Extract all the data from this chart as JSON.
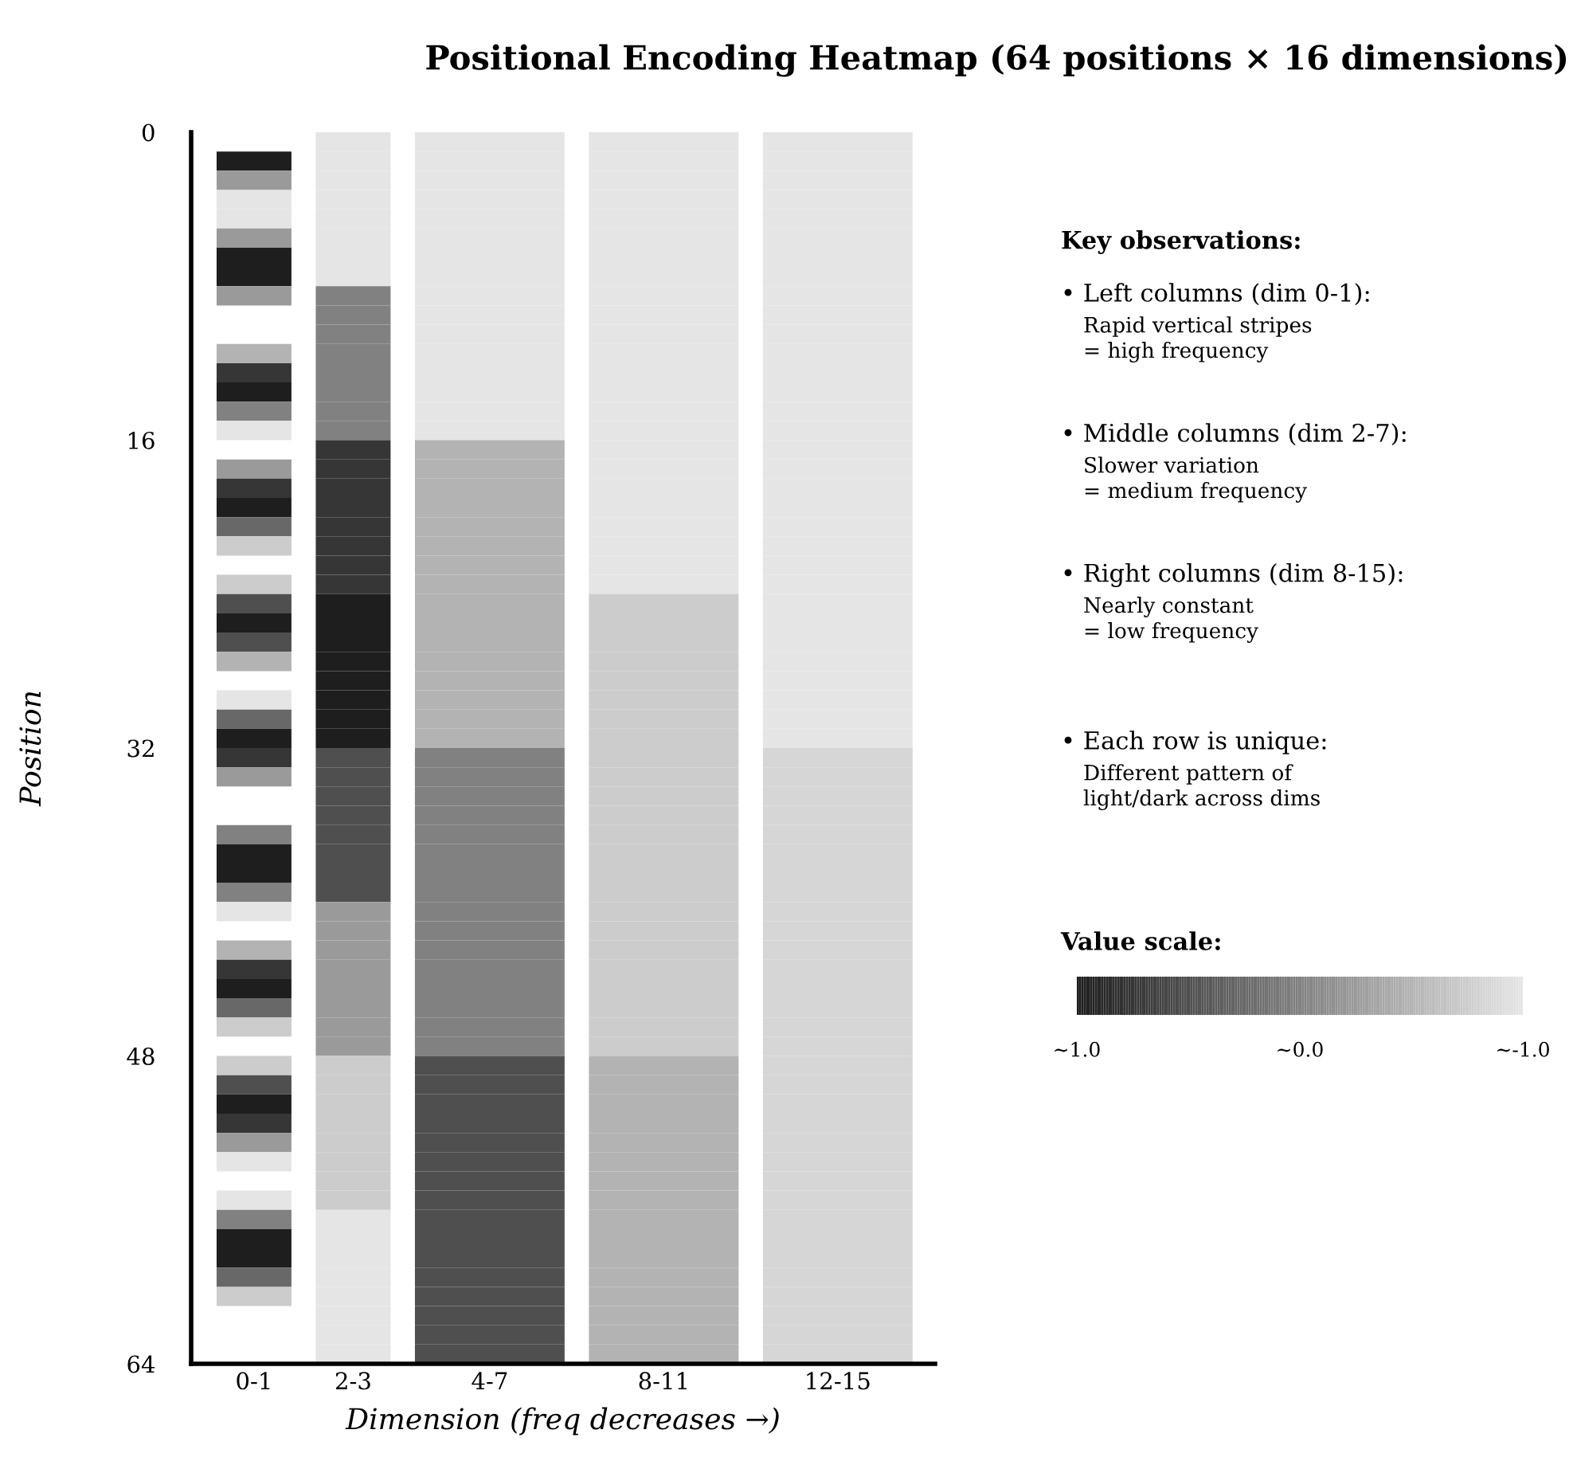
{
  "chart_data": {
    "type": "heatmap",
    "title": "Positional Encoding Heatmap (64 positions × 16 dimensions)",
    "xlabel": "Dimension (freq decreases →)",
    "ylabel": "Position",
    "clabel": "Value scale:",
    "categories": [
      "0-1",
      "2-3",
      "4-7",
      "8-11",
      "12-15"
    ],
    "ylim": [
      64,
      0
    ],
    "yticks": [
      0,
      16,
      32,
      48,
      64
    ],
    "clim": [
      -1,
      1
    ],
    "cticks": [
      {
        "value": 1,
        "label": "~1.0"
      },
      {
        "value": 0,
        "label": "~0.0"
      },
      {
        "value": -1,
        "label": "~-1.0"
      }
    ],
    "cells": [
      [
        null,
        -1,
        -1,
        -1,
        -1
      ],
      [
        1,
        -1,
        -1,
        -1,
        -1
      ],
      [
        -0.25,
        -1,
        -1,
        -1,
        -1
      ],
      [
        -1,
        -1,
        -1,
        -1,
        -1
      ],
      [
        -1,
        -1,
        -1,
        -1,
        -1
      ],
      [
        -0.25,
        -1,
        -1,
        -1,
        -1
      ],
      [
        1,
        -1,
        -1,
        -1,
        -1
      ],
      [
        1,
        -1,
        -1,
        -1,
        -1
      ],
      [
        -0.25,
        0,
        -1,
        -1,
        -1
      ],
      [
        null,
        0,
        -1,
        -1,
        -1
      ],
      [
        null,
        0,
        -1,
        -1,
        -1
      ],
      [
        -0.5,
        0,
        -1,
        -1,
        -1
      ],
      [
        0.75,
        0,
        -1,
        -1,
        -1
      ],
      [
        1,
        0,
        -1,
        -1,
        -1
      ],
      [
        0,
        0,
        -1,
        -1,
        -1
      ],
      [
        -1,
        0,
        -1,
        -1,
        -1
      ],
      [
        null,
        0.75,
        -0.5,
        -1,
        -1
      ],
      [
        -0.25,
        0.75,
        -0.5,
        -1,
        -1
      ],
      [
        0.75,
        0.75,
        -0.5,
        -1,
        -1
      ],
      [
        1,
        0.75,
        -0.5,
        -1,
        -1
      ],
      [
        0.25,
        0.75,
        -0.5,
        -1,
        -1
      ],
      [
        -0.75,
        0.75,
        -0.5,
        -1,
        -1
      ],
      [
        null,
        0.75,
        -0.5,
        -1,
        -1
      ],
      [
        -0.75,
        0.75,
        -0.5,
        -1,
        -1
      ],
      [
        0.5,
        1,
        -0.5,
        -0.75,
        -1
      ],
      [
        1,
        1,
        -0.5,
        -0.75,
        -1
      ],
      [
        0.5,
        1,
        -0.5,
        -0.75,
        -1
      ],
      [
        -0.5,
        1,
        -0.5,
        -0.75,
        -1
      ],
      [
        null,
        1,
        -0.5,
        -0.75,
        -1
      ],
      [
        -1,
        1,
        -0.5,
        -0.75,
        -1
      ],
      [
        0.25,
        1,
        -0.5,
        -0.75,
        -1
      ],
      [
        1,
        1,
        -0.5,
        -0.75,
        -1
      ],
      [
        0.75,
        0.5,
        0,
        -0.75,
        -0.85
      ],
      [
        -0.25,
        0.5,
        0,
        -0.75,
        -0.85
      ],
      [
        null,
        0.5,
        0,
        -0.75,
        -0.85
      ],
      [
        null,
        0.5,
        0,
        -0.75,
        -0.85
      ],
      [
        0,
        0.5,
        0,
        -0.75,
        -0.85
      ],
      [
        1,
        0.5,
        0,
        -0.75,
        -0.85
      ],
      [
        1,
        0.5,
        0,
        -0.75,
        -0.85
      ],
      [
        0,
        0.5,
        0,
        -0.75,
        -0.85
      ],
      [
        -1,
        -0.25,
        0,
        -0.75,
        -0.85
      ],
      [
        null,
        -0.25,
        0,
        -0.75,
        -0.85
      ],
      [
        -0.5,
        -0.25,
        0,
        -0.75,
        -0.85
      ],
      [
        0.75,
        -0.25,
        0,
        -0.75,
        -0.85
      ],
      [
        1,
        -0.25,
        0,
        -0.75,
        -0.85
      ],
      [
        0.25,
        -0.25,
        0,
        -0.75,
        -0.85
      ],
      [
        -0.75,
        -0.25,
        0,
        -0.75,
        -0.85
      ],
      [
        null,
        -0.25,
        0,
        -0.75,
        -0.85
      ],
      [
        -0.75,
        -0.75,
        0.5,
        -0.5,
        -0.85
      ],
      [
        0.5,
        -0.75,
        0.5,
        -0.5,
        -0.85
      ],
      [
        1,
        -0.75,
        0.5,
        -0.5,
        -0.85
      ],
      [
        0.75,
        -0.75,
        0.5,
        -0.5,
        -0.85
      ],
      [
        -0.25,
        -0.75,
        0.5,
        -0.5,
        -0.85
      ],
      [
        -1,
        -0.75,
        0.5,
        -0.5,
        -0.85
      ],
      [
        null,
        -0.75,
        0.5,
        -0.5,
        -0.85
      ],
      [
        -1,
        -0.75,
        0.5,
        -0.5,
        -0.85
      ],
      [
        0,
        -1,
        0.5,
        -0.5,
        -0.85
      ],
      [
        1,
        -1,
        0.5,
        -0.5,
        -0.85
      ],
      [
        1,
        -1,
        0.5,
        -0.5,
        -0.85
      ],
      [
        0.25,
        -1,
        0.5,
        -0.5,
        -0.85
      ],
      [
        -0.75,
        -1,
        0.5,
        -0.5,
        -0.85
      ],
      [
        null,
        -1,
        0.5,
        -0.5,
        -0.85
      ],
      [
        null,
        -1,
        0.5,
        -0.5,
        -0.85
      ],
      [
        null,
        -1,
        0.5,
        -0.5,
        -0.85
      ]
    ],
    "annotations": [
      "Key observations:",
      "• Left columns (dim 0-1):\nRapid vertical stripes\n= high frequency",
      "• Middle columns (dim 2-7):\nSlower variation\n= medium frequency",
      "• Right columns (dim 8-15):\nNearly constant\n= low frequency",
      "• Each row is unique:\nDifferent pattern of\nlight/dark across dims"
    ]
  }
}
